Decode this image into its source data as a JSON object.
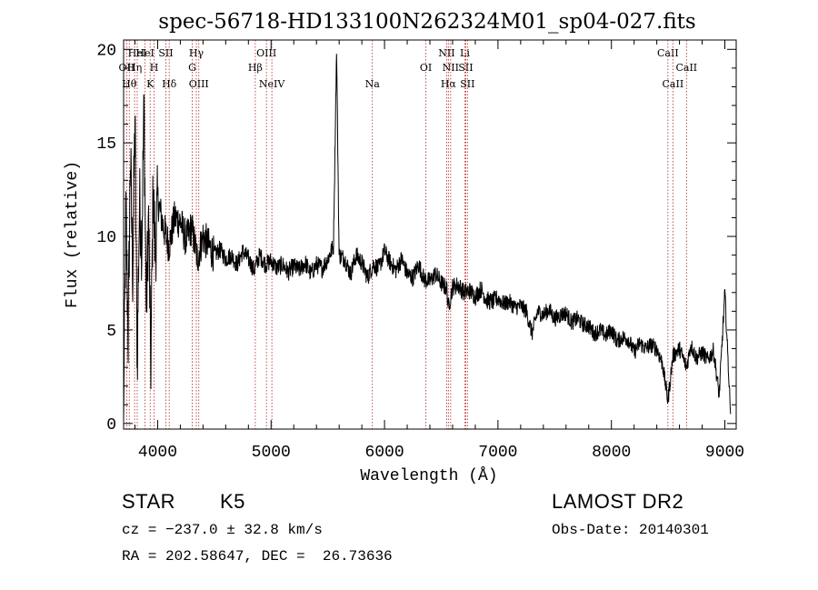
{
  "chart_data": {
    "type": "line",
    "title": "spec-56718-HD133100N262324M01_sp04-027.fits",
    "xlabel": "Wavelength (Å)",
    "ylabel": "Flux (relative)",
    "xlim": [
      3700,
      9100
    ],
    "ylim": [
      -0.3,
      20.5
    ],
    "xticks": [
      4000,
      5000,
      6000,
      7000,
      8000,
      9000
    ],
    "yticks": [
      0,
      5,
      10,
      15,
      20
    ],
    "series": [
      {
        "x": [
          3700,
          3720,
          3740,
          3760,
          3780,
          3800,
          3820,
          3840,
          3860,
          3880,
          3900,
          3920,
          3940,
          3960,
          3980,
          4000,
          4050,
          4100,
          4150,
          4200,
          4250,
          4300,
          4350,
          4400,
          4450,
          4500,
          4550,
          4600,
          4650,
          4700,
          4750,
          4800,
          4850,
          4900,
          4950,
          5000,
          5050,
          5100,
          5150,
          5200,
          5250,
          5300,
          5350,
          5400,
          5450,
          5500,
          5550,
          5577,
          5600,
          5650,
          5700,
          5750,
          5800,
          5850,
          5900,
          5950,
          6000,
          6050,
          6100,
          6150,
          6200,
          6250,
          6300,
          6350,
          6400,
          6450,
          6500,
          6550,
          6563,
          6600,
          6650,
          6700,
          6750,
          6800,
          6850,
          6900,
          6950,
          7000,
          7050,
          7100,
          7150,
          7200,
          7250,
          7300,
          7350,
          7400,
          7450,
          7500,
          7550,
          7600,
          7650,
          7700,
          7750,
          7800,
          7850,
          7900,
          7950,
          8000,
          8050,
          8100,
          8150,
          8200,
          8250,
          8300,
          8350,
          8400,
          8450,
          8498,
          8542,
          8600,
          8662,
          8700,
          8750,
          8800,
          8850,
          8900,
          8950,
          9000,
          9050
        ],
        "y": [
          0.2,
          11.5,
          4.5,
          14.5,
          8.0,
          16.5,
          3.0,
          12.0,
          9.5,
          17.0,
          6.0,
          11.0,
          3.2,
          12.5,
          9.0,
          12.0,
          10.5,
          9.5,
          11.0,
          10.8,
          9.8,
          10.5,
          8.8,
          10.0,
          9.5,
          9.0,
          9.3,
          8.8,
          9.0,
          8.5,
          9.2,
          8.8,
          8.2,
          9.0,
          8.5,
          8.7,
          8.3,
          8.5,
          8.1,
          8.4,
          8.2,
          8.6,
          8.0,
          8.5,
          8.3,
          8.8,
          9.5,
          20.0,
          9.0,
          8.8,
          8.0,
          9.0,
          8.6,
          7.8,
          8.5,
          8.3,
          9.2,
          8.6,
          8.2,
          8.8,
          8.0,
          7.8,
          8.5,
          7.7,
          7.6,
          8.0,
          7.5,
          7.2,
          6.2,
          7.3,
          7.4,
          7.0,
          7.1,
          6.8,
          7.2,
          6.6,
          6.5,
          6.7,
          6.4,
          6.5,
          6.2,
          6.3,
          6.0,
          4.8,
          6.0,
          5.8,
          6.1,
          5.6,
          5.8,
          5.9,
          5.4,
          5.6,
          5.3,
          5.2,
          4.8,
          5.0,
          4.7,
          5.0,
          4.4,
          4.6,
          4.5,
          3.8,
          4.3,
          4.0,
          4.2,
          4.0,
          3.2,
          1.2,
          3.6,
          4.0,
          3.0,
          4.2,
          3.5,
          3.8,
          3.4,
          3.9,
          1.5,
          7.0,
          0.5
        ]
      }
    ],
    "lines": [
      {
        "x": 3727,
        "label": "OII",
        "row": 1
      },
      {
        "x": 3750,
        "label": "Hθ",
        "row": 2
      },
      {
        "x": 3797,
        "label": "Hη",
        "row": 1
      },
      {
        "x": 3820,
        "label": "HeI",
        "row": 0
      },
      {
        "x": 3889,
        "label": "HeI",
        "row": 0
      },
      {
        "x": 3934,
        "label": "K",
        "row": 2
      },
      {
        "x": 3969,
        "label": "H",
        "row": 1
      },
      {
        "x": 4072,
        "label": "SII",
        "row": 0
      },
      {
        "x": 4102,
        "label": "Hδ",
        "row": 2
      },
      {
        "x": 4305,
        "label": "G",
        "row": 1
      },
      {
        "x": 4341,
        "label": "Hγ",
        "row": 0
      },
      {
        "x": 4363,
        "label": "OIII",
        "row": 2
      },
      {
        "x": 4861,
        "label": "Hβ",
        "row": 1
      },
      {
        "x": 4959,
        "label": "OIII",
        "row": 0
      },
      {
        "x": 5007,
        "label": "NeIV",
        "row": 2
      },
      {
        "x": 5893,
        "label": "Na",
        "row": 2
      },
      {
        "x": 6364,
        "label": "OI",
        "row": 1
      },
      {
        "x": 6548,
        "label": "NII",
        "row": 0
      },
      {
        "x": 6563,
        "label": "Hα",
        "row": 2
      },
      {
        "x": 6583,
        "label": "NII",
        "row": 1
      },
      {
        "x": 6708,
        "label": "Li",
        "row": 0
      },
      {
        "x": 6716,
        "label": "SII",
        "row": 1
      },
      {
        "x": 6731,
        "label": "SII",
        "row": 2
      },
      {
        "x": 8498,
        "label": "CaII",
        "row": 0
      },
      {
        "x": 8542,
        "label": "CaII",
        "row": 2
      },
      {
        "x": 8662,
        "label": "CaII",
        "row": 1
      }
    ]
  },
  "footer": {
    "class_label": "STAR",
    "subclass": "K5",
    "survey": "LAMOST DR2",
    "redshift": "cz = −237.0 ± 32.8 km/s",
    "obsdate": "Obs-Date: 20140301",
    "coords": "RA = 202.58647, DEC =  26.73636"
  }
}
